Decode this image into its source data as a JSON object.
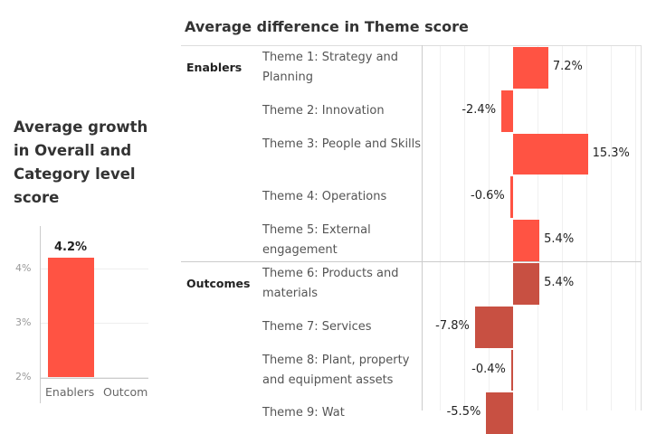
{
  "chart_data": [
    {
      "type": "bar",
      "title": "Average growth in Overall and Category level score",
      "categories": [
        "Enablers",
        "Outcomes"
      ],
      "values": [
        4.2,
        null
      ],
      "data_labels": [
        "4.2%"
      ],
      "y_ticks": [
        "2%",
        "3%",
        "4%"
      ],
      "ylim": [
        2,
        4.6
      ],
      "grid": true,
      "colors": {
        "bar": "#FF5343"
      }
    },
    {
      "type": "bar",
      "orientation": "horizontal",
      "title": "Average difference in Theme score",
      "groups": [
        {
          "name": "Enablers",
          "color": "#FF5343",
          "rows": [
            {
              "label": "Theme 1: Strategy and Planning",
              "value": 7.2,
              "text": "7.2%"
            },
            {
              "label": "Theme 2: Innovation",
              "value": -2.4,
              "text": "-2.4%"
            },
            {
              "label": "Theme 3: People and Skills",
              "value": 15.3,
              "text": "15.3%"
            },
            {
              "label": "Theme 4: Operations",
              "value": -0.6,
              "text": "-0.6%"
            },
            {
              "label": "Theme 5: External engagement",
              "value": 5.4,
              "text": "5.4%"
            }
          ]
        },
        {
          "name": "Outcomes",
          "color": "#C85042",
          "rows": [
            {
              "label": "Theme 6: Products and materials",
              "value": 5.4,
              "text": "5.4%"
            },
            {
              "label": "Theme 7: Services",
              "value": -7.8,
              "text": "-7.8%"
            },
            {
              "label": "Theme 8: Plant, property and equipment assets",
              "value": -0.4,
              "text": "-0.4%"
            },
            {
              "label": "Theme 9: Wat",
              "value": -5.5,
              "text": "-5.5%"
            }
          ]
        }
      ],
      "grid": true
    }
  ]
}
